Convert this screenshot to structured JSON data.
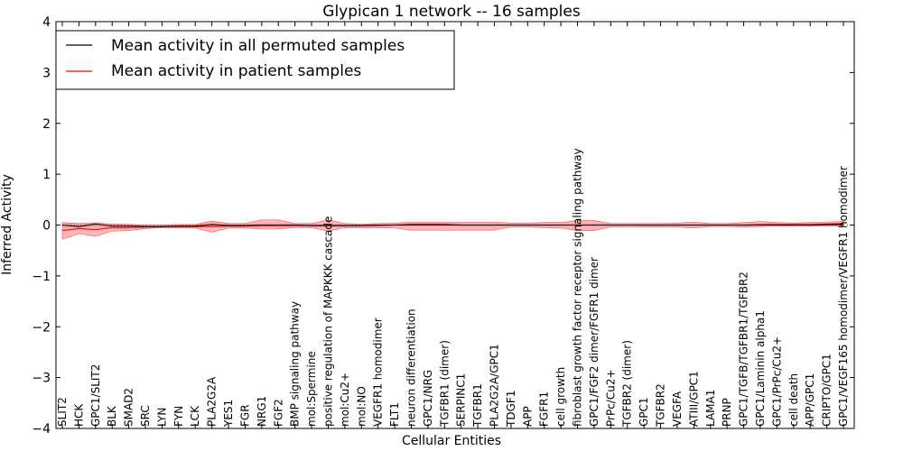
{
  "chart_data": {
    "type": "line",
    "title": "Glypican 1 network -- 16 samples",
    "xlabel": "Cellular Entities",
    "ylabel": "Inferred Activity",
    "ylim": [
      -4,
      4
    ],
    "yticks": [
      -4,
      -3,
      -2,
      -1,
      0,
      1,
      2,
      3,
      4
    ],
    "grid": false,
    "legend_position": "top-left",
    "categories": [
      "SLIT2",
      "HCK",
      "GPC1/SLIT2",
      "BLK",
      "SMAD2",
      "SRC",
      "LYN",
      "FYN",
      "LCK",
      "PLA2G2A",
      "YES1",
      "FGR",
      "NRG1",
      "FGF2",
      "BMP signaling pathway",
      "mol:Spermine",
      "positive regulation of MAPKKK cascade",
      "mol:Cu2+",
      "mol:NO",
      "VEGFR1 homodimer",
      "FLT1",
      "neuron differentiation",
      "GPC1/NRG",
      "TGFBR1 (dimer)",
      "SERPINC1",
      "TGFBR1",
      "PLA2G2A/GPC1",
      "TDGF1",
      "APP",
      "FGFR1",
      "cell growth",
      "fibroblast growth factor receptor signaling pathway",
      "GPC1/FGF2 dimer/FGFR1 dimer",
      "PrPc/Cu2+",
      "TGFBR2 (dimer)",
      "GPC1",
      "TGFBR2",
      "VEGFA",
      "ATIII/GPC1",
      "LAMA1",
      "PRNP",
      "GPC1/TGFB/TGFBR1/TGFBR2",
      "GPC1/Laminin alpha1",
      "GPC1/PrPc/Cu2+",
      "cell death",
      "APP/GPC1",
      "CRIPTO/GPC1",
      "GPC1/VEGF165 homodimer/VEGFR1 homodimer"
    ],
    "series": [
      {
        "name": "Mean activity in all permuted samples",
        "color": "#000000",
        "values": [
          0.0,
          -0.03,
          0.02,
          -0.02,
          -0.02,
          -0.03,
          -0.03,
          -0.02,
          -0.02,
          0.01,
          -0.01,
          -0.01,
          0.0,
          0.0,
          0.0,
          -0.01,
          -0.01,
          -0.01,
          -0.01,
          0.0,
          0.0,
          0.01,
          0.01,
          0.01,
          0.0,
          0.0,
          0.0,
          0.0,
          0.0,
          0.0,
          0.0,
          0.0,
          0.0,
          0.0,
          0.0,
          0.0,
          0.0,
          0.0,
          0.0,
          0.0,
          0.0,
          0.0,
          0.0,
          0.0,
          0.0,
          0.0,
          0.01,
          0.01
        ],
        "band_low": [
          -0.06,
          -0.06,
          -0.03,
          -0.05,
          -0.05,
          -0.05,
          -0.05,
          -0.05,
          -0.05,
          -0.04,
          -0.05,
          -0.05,
          -0.04,
          -0.04,
          -0.03,
          -0.04,
          -0.04,
          -0.04,
          -0.04,
          -0.03,
          -0.03,
          -0.02,
          -0.02,
          -0.02,
          -0.03,
          -0.03,
          -0.03,
          -0.03,
          -0.03,
          -0.03,
          -0.03,
          -0.03,
          -0.03,
          -0.03,
          -0.03,
          -0.03,
          -0.03,
          -0.03,
          -0.03,
          -0.03,
          -0.03,
          -0.03,
          -0.03,
          -0.03,
          -0.03,
          -0.03,
          -0.02,
          -0.02
        ],
        "band_high": [
          0.05,
          0.01,
          0.06,
          0.02,
          0.02,
          0.0,
          0.0,
          0.01,
          0.01,
          0.05,
          0.02,
          0.02,
          0.03,
          0.03,
          0.03,
          0.02,
          0.02,
          0.02,
          0.02,
          0.03,
          0.03,
          0.04,
          0.04,
          0.04,
          0.03,
          0.03,
          0.03,
          0.03,
          0.03,
          0.03,
          0.03,
          0.03,
          0.03,
          0.03,
          0.03,
          0.03,
          0.03,
          0.03,
          0.03,
          0.03,
          0.03,
          0.03,
          0.03,
          0.03,
          0.03,
          0.03,
          0.04,
          0.04
        ]
      },
      {
        "name": "Mean activity in patient samples",
        "color": "#ff0000",
        "values": [
          -0.11,
          -0.07,
          -0.09,
          -0.05,
          -0.05,
          -0.04,
          -0.03,
          -0.03,
          -0.03,
          -0.03,
          -0.02,
          -0.02,
          -0.01,
          -0.01,
          -0.01,
          -0.01,
          -0.01,
          -0.01,
          -0.01,
          -0.01,
          0.0,
          0.0,
          0.0,
          0.0,
          0.0,
          0.0,
          0.0,
          0.0,
          0.0,
          0.0,
          0.0,
          0.0,
          0.0,
          0.0,
          0.0,
          0.0,
          0.0,
          0.0,
          0.0,
          0.0,
          0.0,
          0.0,
          0.01,
          0.01,
          0.01,
          0.01,
          0.02,
          0.03
        ],
        "band_low": [
          -0.28,
          -0.17,
          -0.22,
          -0.12,
          -0.11,
          -0.07,
          -0.05,
          -0.06,
          -0.06,
          -0.14,
          -0.06,
          -0.06,
          -0.08,
          -0.08,
          -0.05,
          -0.05,
          -0.12,
          -0.05,
          -0.06,
          -0.05,
          -0.06,
          -0.1,
          -0.1,
          -0.1,
          -0.1,
          -0.1,
          -0.1,
          -0.04,
          -0.04,
          -0.05,
          -0.06,
          -0.11,
          -0.11,
          -0.04,
          -0.03,
          -0.04,
          -0.04,
          -0.04,
          -0.06,
          -0.03,
          -0.03,
          -0.04,
          -0.03,
          -0.02,
          -0.02,
          -0.02,
          -0.02,
          -0.01
        ],
        "band_high": [
          0.05,
          0.03,
          0.04,
          0.02,
          0.01,
          0.0,
          0.0,
          0.01,
          0.01,
          0.08,
          0.03,
          0.03,
          0.1,
          0.1,
          0.03,
          0.03,
          0.1,
          0.03,
          0.02,
          0.03,
          0.04,
          0.06,
          0.06,
          0.06,
          0.06,
          0.06,
          0.06,
          0.04,
          0.04,
          0.05,
          0.05,
          0.09,
          0.09,
          0.03,
          0.03,
          0.03,
          0.03,
          0.04,
          0.06,
          0.03,
          0.03,
          0.05,
          0.07,
          0.05,
          0.04,
          0.05,
          0.06,
          0.07
        ]
      }
    ]
  }
}
